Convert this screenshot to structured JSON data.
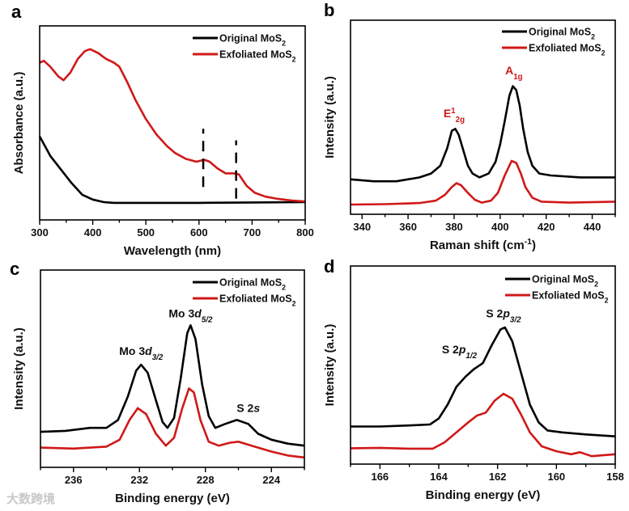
{
  "watermark": "大数跨境",
  "colors": {
    "original": "#000000",
    "exfoliated": "#d01818",
    "raman_annotation": "#d01818",
    "axis": "#000000"
  },
  "chart_data": [
    {
      "panel": "a",
      "type": "line",
      "xlabel": [
        [
          "Wavelength (nm)",
          ""
        ]
      ],
      "ylabel": [
        [
          "Absorbance (a.u.)",
          ""
        ]
      ],
      "xlim": [
        300,
        800
      ],
      "ylim": [
        0,
        1
      ],
      "xticks": [
        300,
        400,
        500,
        600,
        700,
        800
      ],
      "minor_step": 50,
      "legend_placement": "top-right",
      "series": [
        {
          "name": "original",
          "label": [
            [
              "Original MoS",
              ""
            ],
            [
              "2",
              "sub"
            ]
          ],
          "points": [
            [
              300,
              0.43
            ],
            [
              310,
              0.38
            ],
            [
              320,
              0.33
            ],
            [
              340,
              0.26
            ],
            [
              360,
              0.19
            ],
            [
              380,
              0.13
            ],
            [
              400,
              0.105
            ],
            [
              420,
              0.092
            ],
            [
              440,
              0.088
            ],
            [
              500,
              0.088
            ],
            [
              600,
              0.088
            ],
            [
              700,
              0.09
            ],
            [
              800,
              0.092
            ]
          ]
        },
        {
          "name": "exfoliated",
          "label": [
            [
              "Exfoliated MoS",
              ""
            ],
            [
              "2",
              "sub"
            ]
          ],
          "points": [
            [
              300,
              0.81
            ],
            [
              308,
              0.82
            ],
            [
              320,
              0.79
            ],
            [
              335,
              0.74
            ],
            [
              345,
              0.72
            ],
            [
              358,
              0.76
            ],
            [
              372,
              0.83
            ],
            [
              385,
              0.87
            ],
            [
              395,
              0.88
            ],
            [
              410,
              0.86
            ],
            [
              425,
              0.83
            ],
            [
              440,
              0.81
            ],
            [
              450,
              0.79
            ],
            [
              465,
              0.71
            ],
            [
              480,
              0.62
            ],
            [
              500,
              0.52
            ],
            [
              520,
              0.44
            ],
            [
              540,
              0.38
            ],
            [
              555,
              0.345
            ],
            [
              575,
              0.315
            ],
            [
              595,
              0.3
            ],
            [
              610,
              0.31
            ],
            [
              620,
              0.3
            ],
            [
              635,
              0.265
            ],
            [
              650,
              0.24
            ],
            [
              665,
              0.24
            ],
            [
              675,
              0.235
            ],
            [
              690,
              0.175
            ],
            [
              705,
              0.14
            ],
            [
              725,
              0.12
            ],
            [
              750,
              0.108
            ],
            [
              775,
              0.1
            ],
            [
              800,
              0.095
            ]
          ]
        }
      ],
      "markers": [
        {
          "x": 608,
          "y_range": [
            0.17,
            0.47
          ]
        },
        {
          "x": 670,
          "y_range": [
            0.11,
            0.41
          ]
        }
      ],
      "annotations": []
    },
    {
      "panel": "b",
      "type": "line",
      "xlabel": [
        [
          "Raman shift (cm",
          ""
        ],
        [
          "-1",
          "sup"
        ],
        [
          ")",
          ""
        ]
      ],
      "ylabel": [
        [
          "Intensity (a.u.)",
          ""
        ]
      ],
      "xlim": [
        335,
        450
      ],
      "ylim": [
        0,
        1
      ],
      "xticks": [
        340,
        360,
        380,
        400,
        420,
        440
      ],
      "minor_step": 10,
      "legend_placement": "top-right",
      "series": [
        {
          "name": "original",
          "label": [
            [
              "Original MoS",
              ""
            ],
            [
              "2",
              "sub"
            ]
          ],
          "points": [
            [
              335,
              0.18
            ],
            [
              345,
              0.17
            ],
            [
              355,
              0.17
            ],
            [
              365,
              0.19
            ],
            [
              370,
              0.21
            ],
            [
              374,
              0.25
            ],
            [
              377,
              0.34
            ],
            [
              379,
              0.43
            ],
            [
              380.5,
              0.44
            ],
            [
              382,
              0.41
            ],
            [
              384,
              0.33
            ],
            [
              386,
              0.25
            ],
            [
              388,
              0.21
            ],
            [
              391,
              0.19
            ],
            [
              395,
              0.21
            ],
            [
              398,
              0.27
            ],
            [
              400,
              0.36
            ],
            [
              402,
              0.48
            ],
            [
              404,
              0.61
            ],
            [
              405.5,
              0.66
            ],
            [
              407,
              0.64
            ],
            [
              408.5,
              0.56
            ],
            [
              410,
              0.44
            ],
            [
              412,
              0.32
            ],
            [
              414,
              0.25
            ],
            [
              417,
              0.21
            ],
            [
              422,
              0.2
            ],
            [
              435,
              0.19
            ],
            [
              450,
              0.19
            ]
          ]
        },
        {
          "name": "exfoliated",
          "label": [
            [
              "Exfoliated MoS",
              ""
            ],
            [
              "2",
              "sub"
            ]
          ],
          "points": [
            [
              335,
              0.05
            ],
            [
              350,
              0.052
            ],
            [
              365,
              0.058
            ],
            [
              372,
              0.07
            ],
            [
              376,
              0.1
            ],
            [
              379,
              0.14
            ],
            [
              381,
              0.16
            ],
            [
              383,
              0.15
            ],
            [
              386,
              0.11
            ],
            [
              389,
              0.075
            ],
            [
              392,
              0.06
            ],
            [
              396,
              0.07
            ],
            [
              399,
              0.11
            ],
            [
              402,
              0.2
            ],
            [
              405,
              0.275
            ],
            [
              407,
              0.265
            ],
            [
              409,
              0.21
            ],
            [
              411,
              0.14
            ],
            [
              414,
              0.085
            ],
            [
              418,
              0.065
            ],
            [
              430,
              0.06
            ],
            [
              450,
              0.065
            ]
          ]
        }
      ],
      "annotations": [
        {
          "x": 380,
          "y": 0.5,
          "parts": [
            [
              "E",
              ""
            ],
            [
              "1",
              "sup"
            ],
            [
              "2g",
              "sub"
            ]
          ],
          "color": "red"
        },
        {
          "x": 406,
          "y": 0.72,
          "parts": [
            [
              "A",
              ""
            ],
            [
              "1g",
              "sub"
            ]
          ],
          "color": "red"
        }
      ]
    },
    {
      "panel": "c",
      "type": "line",
      "xlabel": [
        [
          "Binding energy (eV)",
          ""
        ]
      ],
      "ylabel": [
        [
          "Intensity (a.u.)",
          ""
        ]
      ],
      "xlim": [
        238,
        222
      ],
      "ylim": [
        0,
        1
      ],
      "xticks": [
        236,
        232,
        228,
        224
      ],
      "minor_step": 2,
      "legend_placement": "top-right",
      "series": [
        {
          "name": "original",
          "label": [
            [
              "Original MoS",
              ""
            ],
            [
              "2",
              "sub"
            ]
          ],
          "points": [
            [
              238,
              0.18
            ],
            [
              236.5,
              0.185
            ],
            [
              235,
              0.2
            ],
            [
              234,
              0.2
            ],
            [
              233.3,
              0.24
            ],
            [
              232.7,
              0.36
            ],
            [
              232.2,
              0.49
            ],
            [
              231.9,
              0.52
            ],
            [
              231.5,
              0.48
            ],
            [
              231,
              0.34
            ],
            [
              230.6,
              0.23
            ],
            [
              230.3,
              0.2
            ],
            [
              229.9,
              0.25
            ],
            [
              229.5,
              0.45
            ],
            [
              229.1,
              0.68
            ],
            [
              228.9,
              0.72
            ],
            [
              228.6,
              0.65
            ],
            [
              228.2,
              0.42
            ],
            [
              227.8,
              0.26
            ],
            [
              227.4,
              0.2
            ],
            [
              226.8,
              0.22
            ],
            [
              226.1,
              0.24
            ],
            [
              225.4,
              0.22
            ],
            [
              224.8,
              0.17
            ],
            [
              224,
              0.14
            ],
            [
              223,
              0.12
            ],
            [
              222,
              0.11
            ]
          ]
        },
        {
          "name": "exfoliated",
          "label": [
            [
              "Exfoliated MoS",
              ""
            ],
            [
              "2",
              "sub"
            ]
          ],
          "points": [
            [
              238,
              0.1
            ],
            [
              236,
              0.095
            ],
            [
              234,
              0.105
            ],
            [
              233.2,
              0.14
            ],
            [
              232.6,
              0.24
            ],
            [
              232.1,
              0.3
            ],
            [
              231.6,
              0.27
            ],
            [
              231,
              0.17
            ],
            [
              230.4,
              0.11
            ],
            [
              229.9,
              0.15
            ],
            [
              229.4,
              0.3
            ],
            [
              229,
              0.4
            ],
            [
              228.7,
              0.38
            ],
            [
              228.3,
              0.24
            ],
            [
              227.8,
              0.13
            ],
            [
              227.2,
              0.11
            ],
            [
              226.5,
              0.125
            ],
            [
              226,
              0.13
            ],
            [
              225.2,
              0.11
            ],
            [
              224,
              0.08
            ],
            [
              223,
              0.06
            ],
            [
              222,
              0.05
            ]
          ]
        }
      ],
      "annotations": [
        {
          "x": 231.9,
          "y": 0.57,
          "parts": [
            [
              "Mo 3",
              ""
            ],
            [
              "d",
              "i"
            ],
            [
              "3/2",
              "isub"
            ]
          ],
          "color": "black"
        },
        {
          "x": 228.9,
          "y": 0.76,
          "parts": [
            [
              "Mo 3",
              ""
            ],
            [
              "d",
              "i"
            ],
            [
              "5/2",
              "isub"
            ]
          ],
          "color": "black"
        },
        {
          "x": 225.4,
          "y": 0.28,
          "parts": [
            [
              "S 2",
              ""
            ],
            [
              "s",
              "i"
            ]
          ],
          "color": "black"
        }
      ]
    },
    {
      "panel": "d",
      "type": "line",
      "xlabel": [
        [
          "Binding energy (eV)",
          ""
        ]
      ],
      "ylabel": [
        [
          "Intensity (a.u.)",
          ""
        ]
      ],
      "xlim": [
        167,
        158
      ],
      "ylim": [
        0,
        1
      ],
      "xticks": [
        166,
        164,
        162,
        160,
        158
      ],
      "minor_step": 1,
      "legend_placement": "top-right",
      "series": [
        {
          "name": "original",
          "label": [
            [
              "Original MoS",
              ""
            ],
            [
              "2",
              "sub"
            ]
          ],
          "points": [
            [
              167,
              0.19
            ],
            [
              166,
              0.19
            ],
            [
              165,
              0.195
            ],
            [
              164.3,
              0.2
            ],
            [
              164,
              0.23
            ],
            [
              163.7,
              0.3
            ],
            [
              163.4,
              0.39
            ],
            [
              163.1,
              0.44
            ],
            [
              162.8,
              0.48
            ],
            [
              162.5,
              0.51
            ],
            [
              162.2,
              0.6
            ],
            [
              161.9,
              0.68
            ],
            [
              161.75,
              0.69
            ],
            [
              161.5,
              0.62
            ],
            [
              161.2,
              0.46
            ],
            [
              160.9,
              0.3
            ],
            [
              160.6,
              0.21
            ],
            [
              160.3,
              0.17
            ],
            [
              159.8,
              0.16
            ],
            [
              159,
              0.15
            ],
            [
              158,
              0.14
            ]
          ]
        },
        {
          "name": "exfoliated",
          "label": [
            [
              "Exfoliated MoS",
              ""
            ],
            [
              "2",
              "sub"
            ]
          ],
          "points": [
            [
              167,
              0.08
            ],
            [
              166,
              0.082
            ],
            [
              165,
              0.078
            ],
            [
              164.2,
              0.078
            ],
            [
              163.8,
              0.11
            ],
            [
              163.4,
              0.16
            ],
            [
              163,
              0.21
            ],
            [
              162.7,
              0.245
            ],
            [
              162.4,
              0.26
            ],
            [
              162.1,
              0.32
            ],
            [
              161.8,
              0.355
            ],
            [
              161.5,
              0.33
            ],
            [
              161.2,
              0.25
            ],
            [
              160.9,
              0.16
            ],
            [
              160.5,
              0.09
            ],
            [
              160,
              0.065
            ],
            [
              159.5,
              0.05
            ],
            [
              159.2,
              0.06
            ],
            [
              158.8,
              0.04
            ],
            [
              158,
              0.05
            ]
          ]
        }
      ],
      "annotations": [
        {
          "x": 163.3,
          "y": 0.56,
          "parts": [
            [
              "S 2",
              ""
            ],
            [
              "p",
              "i"
            ],
            [
              "1/2",
              "isub"
            ]
          ],
          "color": "black"
        },
        {
          "x": 161.8,
          "y": 0.74,
          "parts": [
            [
              "S 2",
              ""
            ],
            [
              "p",
              "i"
            ],
            [
              "3/2",
              "isub"
            ]
          ],
          "color": "black"
        }
      ]
    }
  ]
}
